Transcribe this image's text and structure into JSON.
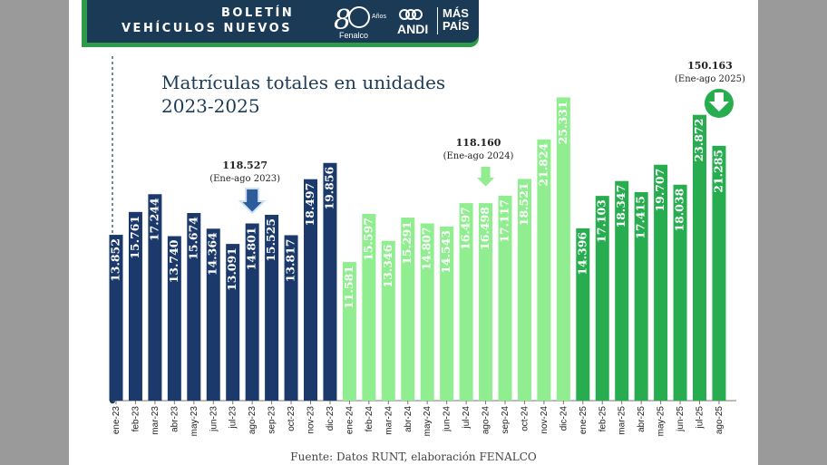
{
  "banner": {
    "line1": "BOLETÍN",
    "line2": "VEHÍCULOS NUEVOS"
  },
  "logos": {
    "fenalco_anos": "Años",
    "fenalco_name": "Fenalco",
    "andi": "ANDI",
    "mas": "MÁS",
    "pais": "PAÍS"
  },
  "colors": {
    "dark_navy": "#1b3a6b",
    "light_green": "#90ee90",
    "green": "#27ad4f",
    "banner": "#1b3a55"
  },
  "chart_data": {
    "type": "bar",
    "title": "Matrículas totales en unidades",
    "subtitle": "2023-2025",
    "categories": [
      "ene-23",
      "feb-23",
      "mar-23",
      "abr-23",
      "may-23",
      "jun-23",
      "jul-23",
      "ago-23",
      "sep-23",
      "oct-23",
      "nov-23",
      "dic-23",
      "ene-24",
      "feb-24",
      "mar-24",
      "abr-24",
      "may-24",
      "jun-24",
      "jul-24",
      "ago-24",
      "sep-24",
      "oct-24",
      "nov-24",
      "dic-24",
      "ene-25",
      "feb-25",
      "mar-25",
      "abr-25",
      "may-25",
      "jun-25",
      "jul-25",
      "ago-25"
    ],
    "values": [
      13852,
      15761,
      17244,
      13740,
      15674,
      14364,
      13091,
      14801,
      15525,
      13817,
      18497,
      19856,
      11581,
      15597,
      13346,
      15291,
      14807,
      14543,
      16497,
      16498,
      17117,
      18521,
      21824,
      25331,
      14396,
      17103,
      18347,
      17415,
      19707,
      18038,
      23872,
      21285
    ],
    "labels": [
      "13.852",
      "15.761",
      "17.244",
      "13.740",
      "15.674",
      "14.364",
      "13.091",
      "14.801",
      "15.525",
      "13.817",
      "18.497",
      "19.856",
      "11.581",
      "15.597",
      "13.346",
      "15.291",
      "14.807",
      "14.543",
      "16.497",
      "16.498",
      "17.117",
      "18.521",
      "21.824",
      "25.331",
      "14.396",
      "17.103",
      "18.347",
      "17.415",
      "19.707",
      "18.038",
      "23.872",
      "21.285"
    ],
    "series_colors": [
      "#1b3a6b",
      "#90ee90",
      "#27ad4f"
    ],
    "annotations": [
      {
        "value": "118.527",
        "period": "(Ene-ago 2023)",
        "at_index": 7
      },
      {
        "value": "118.160",
        "period": "(Ene-ago 2024)",
        "at_index": 19
      },
      {
        "value": "150.163",
        "period": "(Ene-ago 2025)",
        "at_index": 31
      }
    ],
    "ylim": [
      0,
      26500
    ],
    "grid": false,
    "legend": "none"
  },
  "source": "Fuente: Datos RUNT, elaboración FENALCO"
}
